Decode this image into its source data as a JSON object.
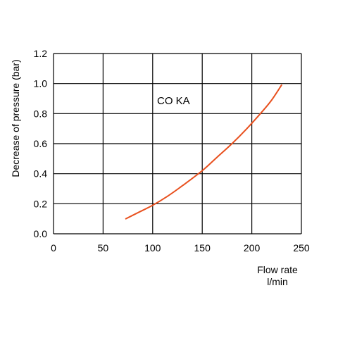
{
  "chart_data": {
    "type": "line",
    "title": "",
    "xlabel_line1": "Flow rate",
    "xlabel_line2": "l/min",
    "ylabel": "Decrease of pressure (bar)",
    "xlim": [
      0,
      250
    ],
    "ylim": [
      0,
      1.2
    ],
    "x_ticks": [
      0,
      50,
      100,
      150,
      200,
      250
    ],
    "y_ticks": [
      0.0,
      0.2,
      0.4,
      0.6,
      0.8,
      1.0,
      1.2
    ],
    "x_tick_labels": [
      "0",
      "50",
      "100",
      "150",
      "200",
      "250"
    ],
    "y_tick_labels": [
      "0.0",
      "0.2",
      "0.4",
      "0.6",
      "0.8",
      "1.0",
      "1.2"
    ],
    "grid": true,
    "annotation": "CO KA",
    "series": [
      {
        "color": "#e8501e",
        "x": [
          73,
          85,
          100,
          115,
          130,
          150,
          165,
          180,
          195,
          210,
          220,
          230
        ],
        "y": [
          0.1,
          0.14,
          0.19,
          0.25,
          0.32,
          0.42,
          0.51,
          0.6,
          0.7,
          0.81,
          0.89,
          0.99
        ]
      }
    ]
  }
}
